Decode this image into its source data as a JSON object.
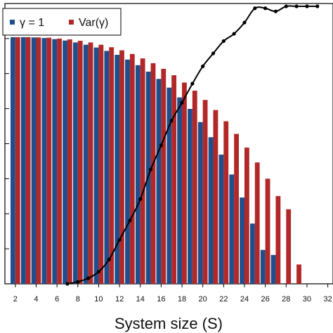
{
  "chart_data": {
    "type": "bar",
    "title": "",
    "xlabel": "System size (S)",
    "ylabel": "",
    "xlim": [
      1,
      32.5
    ],
    "ylim": [
      0,
      1.0
    ],
    "x_ticks": [
      2,
      4,
      6,
      8,
      10,
      12,
      14,
      16,
      18,
      20,
      22,
      24,
      26,
      28,
      30,
      32
    ],
    "grid": false,
    "legend_position": "top-left",
    "series": [
      {
        "name": "γ = 1",
        "type": "bar",
        "color": "#1f4e8c",
        "x": [
          2,
          3,
          4,
          5,
          6,
          7,
          8,
          9,
          10,
          11,
          12,
          13,
          14,
          15,
          16,
          17,
          18,
          19,
          20,
          21,
          22,
          23,
          24,
          25,
          26,
          27
        ],
        "values": [
          0.88,
          0.88,
          0.879,
          0.877,
          0.873,
          0.868,
          0.861,
          0.853,
          0.843,
          0.831,
          0.817,
          0.8,
          0.78,
          0.757,
          0.731,
          0.7,
          0.665,
          0.624,
          0.577,
          0.523,
          0.461,
          0.39,
          0.308,
          0.215,
          0.121,
          0.103
        ]
      },
      {
        "name": "Var(γ)",
        "type": "bar",
        "color": "#b22828",
        "x": [
          2,
          3,
          4,
          5,
          6,
          7,
          8,
          9,
          10,
          11,
          12,
          13,
          14,
          15,
          16,
          17,
          18,
          19,
          20,
          21,
          22,
          23,
          24,
          25,
          26,
          27,
          28,
          29
        ],
        "values": [
          0.88,
          0.88,
          0.879,
          0.878,
          0.875,
          0.872,
          0.867,
          0.861,
          0.853,
          0.844,
          0.833,
          0.82,
          0.804,
          0.787,
          0.767,
          0.744,
          0.718,
          0.689,
          0.656,
          0.62,
          0.58,
          0.535,
          0.486,
          0.433,
          0.375,
          0.313,
          0.266,
          0.069
        ]
      },
      {
        "name": "",
        "type": "line",
        "color": "#000000",
        "x": [
          7,
          8,
          9,
          10,
          11,
          12,
          13,
          14,
          15,
          16,
          17,
          18,
          19,
          20,
          21,
          22,
          23,
          24,
          25,
          26,
          27,
          28,
          29,
          30,
          31
        ],
        "values": [
          0.0,
          0.007,
          0.02,
          0.043,
          0.087,
          0.157,
          0.226,
          0.302,
          0.408,
          0.494,
          0.582,
          0.646,
          0.714,
          0.776,
          0.822,
          0.866,
          0.892,
          0.932,
          0.983,
          0.983,
          0.972,
          0.99,
          0.99,
          0.99,
          0.99
        ]
      }
    ]
  }
}
